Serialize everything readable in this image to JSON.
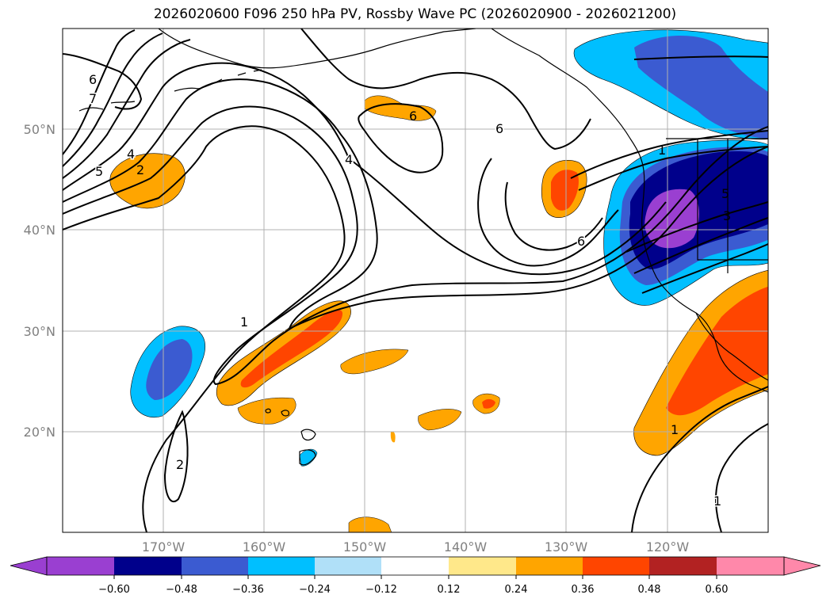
{
  "title": "2026020600 F096 250 hPa PV, Rossby Wave PC (2026020900 - 2026021200)",
  "map": {
    "lon_ticks": [
      {
        "label": "170°W"
      },
      {
        "label": "160°W"
      },
      {
        "label": "150°W"
      },
      {
        "label": "140°W"
      },
      {
        "label": "130°W"
      },
      {
        "label": "120°W"
      }
    ],
    "lat_ticks": [
      {
        "label": "50°N"
      },
      {
        "label": "40°N"
      },
      {
        "label": "30°N"
      },
      {
        "label": "20°N"
      }
    ],
    "contour_labels": [
      "6",
      "7",
      "5",
      "4",
      "2",
      "4",
      "6",
      "6",
      "1",
      "6",
      "1",
      "5",
      "3",
      "2",
      "1",
      "1"
    ]
  },
  "colorbar": {
    "colors": [
      "#9a3fd1",
      "#00008b",
      "#3b5bd1",
      "#00bfff",
      "#b0e0f8",
      "#ffffff",
      "#ffe88a",
      "#ffa500",
      "#ff4500",
      "#b22222",
      "#ff88aa"
    ],
    "tick_labels": [
      "−0.60",
      "−0.48",
      "−0.36",
      "−0.24",
      "−0.12",
      "0.12",
      "0.24",
      "0.36",
      "0.48",
      "0.60"
    ]
  }
}
